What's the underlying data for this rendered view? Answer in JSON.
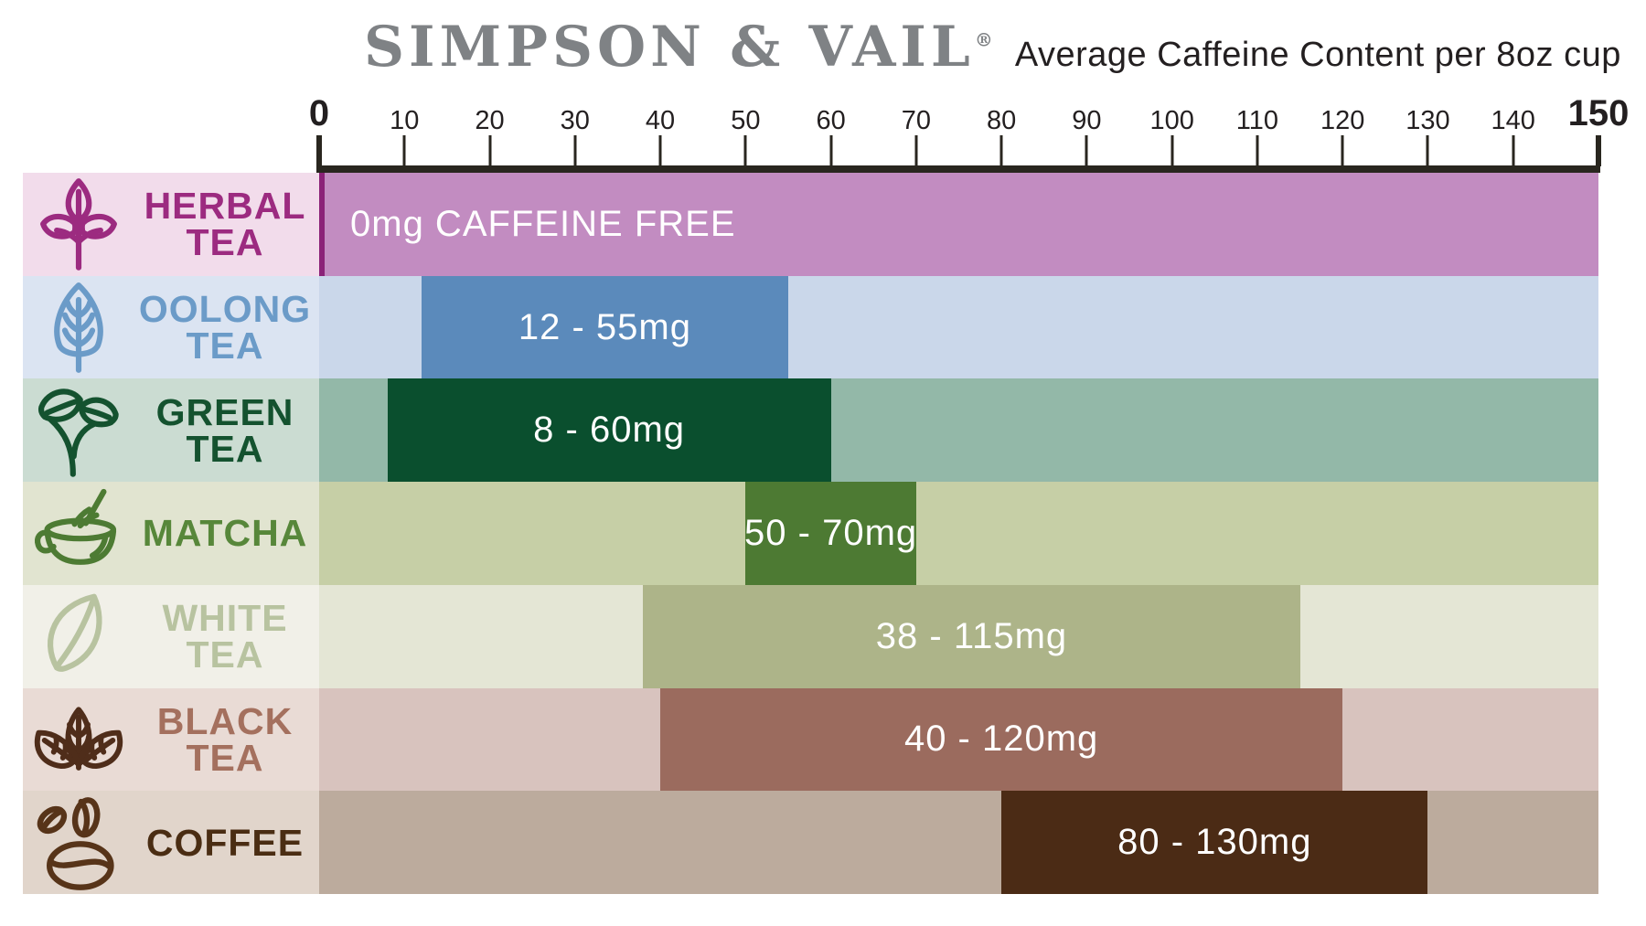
{
  "header": {
    "brand": "SIMPSON & VAIL",
    "registered": "®",
    "subtitle": "Average Caffeine Content per 8oz cup",
    "brand_color": "#7f8285",
    "subtitle_color": "#231f20"
  },
  "axis": {
    "min": 0,
    "max": 150,
    "tick_step": 10,
    "tick_labels": [
      "0",
      "10",
      "20",
      "30",
      "40",
      "50",
      "60",
      "70",
      "80",
      "90",
      "100",
      "110",
      "120",
      "130",
      "140",
      "150"
    ],
    "line_color": "#29261f",
    "label_color": "#231f20",
    "zero_line_color": "#8b2278"
  },
  "chart_data": {
    "type": "bar",
    "orientation": "horizontal-range",
    "title": "Average Caffeine Content per 8oz cup",
    "unit": "mg",
    "xlim": [
      0,
      150
    ],
    "grid": false,
    "categories": [
      "Herbal Tea",
      "Oolong Tea",
      "Green Tea",
      "Matcha",
      "White Tea",
      "Black Tea",
      "Coffee"
    ],
    "ranges": [
      [
        0,
        0
      ],
      [
        12,
        55
      ],
      [
        8,
        60
      ],
      [
        50,
        70
      ],
      [
        38,
        115
      ],
      [
        40,
        120
      ],
      [
        80,
        130
      ]
    ],
    "value_labels": [
      "0mg CAFFEINE FREE",
      "12 - 55mg",
      "8 - 60mg",
      "50 - 70mg",
      "38 - 115mg",
      "40 - 120mg",
      "80 - 130mg"
    ]
  },
  "rows": [
    {
      "line1": "HERBAL",
      "line2": "TEA",
      "value_label": "0mg CAFFEINE FREE",
      "bar_min": 0,
      "bar_max": 150,
      "label_bg": "#f2dceb",
      "row_bg": "#c28cc1",
      "bar_color": "#c28cc1",
      "text_color": "#9c2b80",
      "icon_color": "#9c2b80"
    },
    {
      "line1": "OOLONG",
      "line2": "TEA",
      "value_label": "12 - 55mg",
      "bar_min": 12,
      "bar_max": 55,
      "label_bg": "#dbe4f2",
      "row_bg": "#cad7ea",
      "bar_color": "#5b8abb",
      "text_color": "#6b9bc8",
      "icon_color": "#6b9bc8"
    },
    {
      "line1": "GREEN",
      "line2": "TEA",
      "value_label": "8 - 60mg",
      "bar_min": 8,
      "bar_max": 60,
      "label_bg": "#cbdcd2",
      "row_bg": "#93b8a8",
      "bar_color": "#0a4f2e",
      "text_color": "#14522f",
      "icon_color": "#14522f"
    },
    {
      "line1": "MATCHA",
      "line2": "",
      "value_label": "50 - 70mg",
      "bar_min": 50,
      "bar_max": 70,
      "label_bg": "#e1e4d0",
      "row_bg": "#c6cfa6",
      "bar_color": "#4d7a33",
      "text_color": "#57873a",
      "icon_color": "#4d7b33"
    },
    {
      "line1": "WHITE",
      "line2": "TEA",
      "value_label": "38 - 115mg",
      "bar_min": 38,
      "bar_max": 115,
      "label_bg": "#f1f0e8",
      "row_bg": "#e4e6d5",
      "bar_color": "#adb489",
      "text_color": "#b8c3a0",
      "icon_color": "#b8c3a0"
    },
    {
      "line1": "BLACK",
      "line2": "TEA",
      "value_label": "40 - 120mg",
      "bar_min": 40,
      "bar_max": 120,
      "label_bg": "#e9dbd5",
      "row_bg": "#d8c3be",
      "bar_color": "#9b6b5e",
      "text_color": "#a4705e",
      "icon_color": "#4f2d1a"
    },
    {
      "line1": "COFFEE",
      "line2": "",
      "value_label": "80 - 130mg",
      "bar_min": 80,
      "bar_max": 130,
      "label_bg": "#e1d5cb",
      "row_bg": "#bcab9d",
      "bar_color": "#4b2b15",
      "text_color": "#4a2d13",
      "icon_color": "#573419"
    }
  ]
}
